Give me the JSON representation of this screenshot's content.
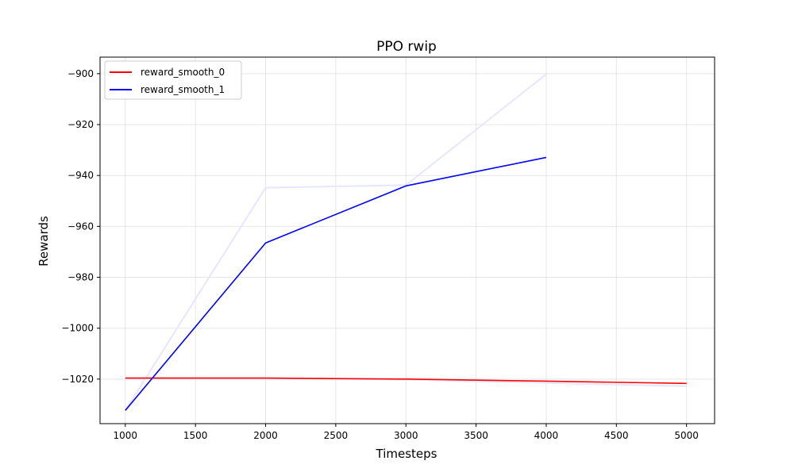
{
  "chart_data": {
    "type": "line",
    "title": "PPO rwip",
    "xlabel": "Timesteps",
    "ylabel": "Rewards",
    "xlim": [
      820,
      5200
    ],
    "ylim": [
      -1037.5,
      -893.5
    ],
    "xticks": [
      1000,
      1500,
      2000,
      2500,
      3000,
      3500,
      4000,
      4500,
      5000
    ],
    "yticks": [
      -1020,
      -1000,
      -980,
      -960,
      -940,
      -920,
      -900
    ],
    "xtick_labels": [
      "1000",
      "1500",
      "2000",
      "2500",
      "3000",
      "3500",
      "4000",
      "4500",
      "5000"
    ],
    "ytick_labels": [
      "−1020",
      "−1000",
      "−980",
      "−960",
      "−940",
      "−920",
      "−900"
    ],
    "grid": true,
    "legend_position": "top-left",
    "series": [
      {
        "name": "reward_smooth_0",
        "color": "#ff0000",
        "x": [
          1000,
          2000,
          3000,
          4000,
          5000
        ],
        "values": [
          -1019.6,
          -1019.6,
          -1020.0,
          -1020.8,
          -1021.7
        ]
      },
      {
        "name": "reward_smooth_1",
        "color": "#0000ff",
        "x": [
          1000,
          2000,
          3000,
          4000
        ],
        "values": [
          -1032.3,
          -966.5,
          -944.1,
          -932.9
        ]
      }
    ],
    "raw_series": [
      {
        "color": "#e6e6ff",
        "x": [
          1000,
          2000,
          3000,
          4000,
          5000
        ],
        "values": [
          -1019.6,
          -1019.6,
          -1020.2,
          -1021.5,
          -1022.8
        ]
      },
      {
        "color": "#e6e6ff",
        "x": [
          1000,
          2000,
          3000,
          4000
        ],
        "values": [
          -1032.3,
          -944.8,
          -943.8,
          -900.2
        ]
      }
    ]
  }
}
